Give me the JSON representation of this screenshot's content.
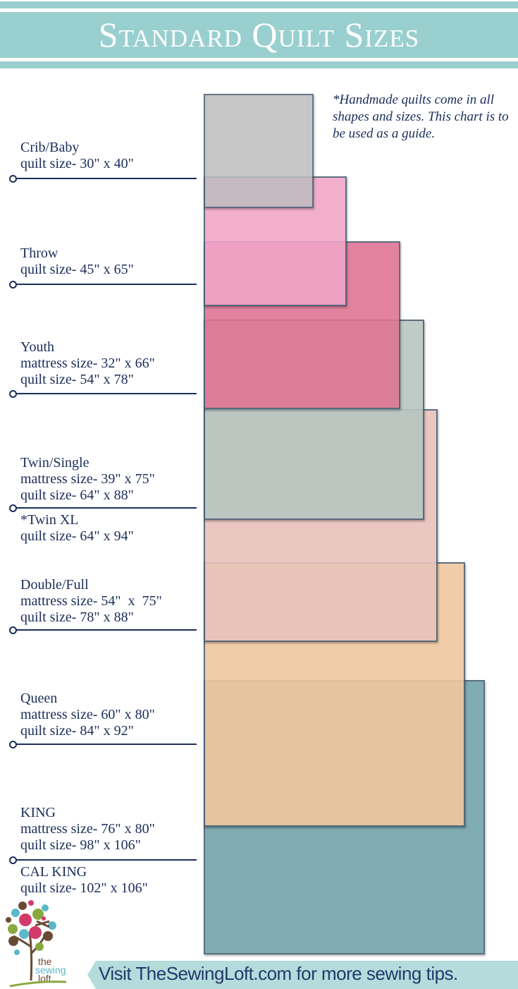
{
  "header": {
    "title": "Standard Quilt Sizes"
  },
  "note": "*Handmade quilts come in all shapes and sizes. This chart is to be used as a guide.",
  "sizes": [
    {
      "label": "Crib/Baby\nquilt size- 30\" x 40\"",
      "color": "#bdbdbd"
    },
    {
      "label": "Throw\nquilt size- 45\" x 65\"",
      "color": "#f0a6c8"
    },
    {
      "label": "Youth\nmattress size- 32\" x 66\"\nquilt size- 54\" x 78\"",
      "color": "#e07594"
    },
    {
      "label": "Twin/Single\nmattress size- 39\" x 75\"\nquilt size- 64\" x 88\"",
      "extra": "*Twin XL\nquilt size- 64\" x 94\"",
      "color": "#b7c6c2"
    },
    {
      "label": "Double/Full\nmattress size- 54\"  x  75\"\nquilt size- 78\" x 88\"",
      "color": "#e8c2ba"
    },
    {
      "label": "Queen\nmattress size- 60\" x 80\"\nquilt size- 84\" x 92\"",
      "color": "#f0c89e"
    },
    {
      "label": "KING\nmattress size- 76\" x 80\"\nquilt size- 98\" x 106\"",
      "extra": "CAL KING\nquilt size- 102\" x 106\"",
      "color": "#72a4aa"
    }
  ],
  "logo": {
    "text": "the sewing loft"
  },
  "footer": {
    "text": "Visit TheSewingLoft.com for more sewing tips."
  }
}
